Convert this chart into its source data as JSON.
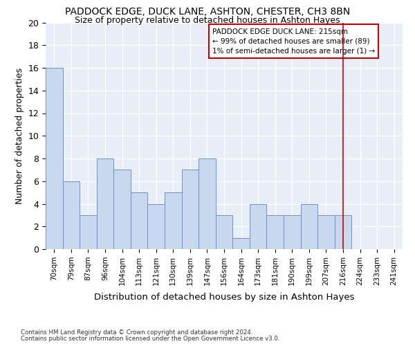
{
  "title": "PADDOCK EDGE, DUCK LANE, ASHTON, CHESTER, CH3 8BN",
  "subtitle": "Size of property relative to detached houses in Ashton Hayes",
  "xlabel_bottom": "Distribution of detached houses by size in Ashton Hayes",
  "ylabel": "Number of detached properties",
  "footnote1": "Contains HM Land Registry data © Crown copyright and database right 2024.",
  "footnote2": "Contains public sector information licensed under the Open Government Licence v3.0.",
  "bin_labels": [
    "70sqm",
    "79sqm",
    "87sqm",
    "96sqm",
    "104sqm",
    "113sqm",
    "121sqm",
    "130sqm",
    "139sqm",
    "147sqm",
    "156sqm",
    "164sqm",
    "173sqm",
    "181sqm",
    "190sqm",
    "199sqm",
    "207sqm",
    "216sqm",
    "224sqm",
    "233sqm",
    "241sqm"
  ],
  "bar_values": [
    16,
    6,
    3,
    8,
    7,
    5,
    4,
    5,
    7,
    8,
    3,
    1,
    4,
    3,
    3,
    4,
    3,
    3,
    0,
    0,
    0
  ],
  "bar_color": "#c8d8ee",
  "bar_edge_color": "#7090c0",
  "vline_x": 17.0,
  "vline_color": "#cc0000",
  "annotation_title": "PADDOCK EDGE DUCK LANE: 215sqm",
  "annotation_line1": "← 99% of detached houses are smaller (89)",
  "annotation_line2": "1% of semi-detached houses are larger (1) →",
  "annotation_box_color": "#cc0000",
  "ylim": [
    0,
    20
  ],
  "yticks": [
    0,
    2,
    4,
    6,
    8,
    10,
    12,
    14,
    16,
    18,
    20
  ],
  "fig_bg_color": "#ffffff",
  "plot_bg_color": "#e8eef8",
  "grid_color": "#ffffff",
  "title_fontsize": 10,
  "subtitle_fontsize": 9
}
